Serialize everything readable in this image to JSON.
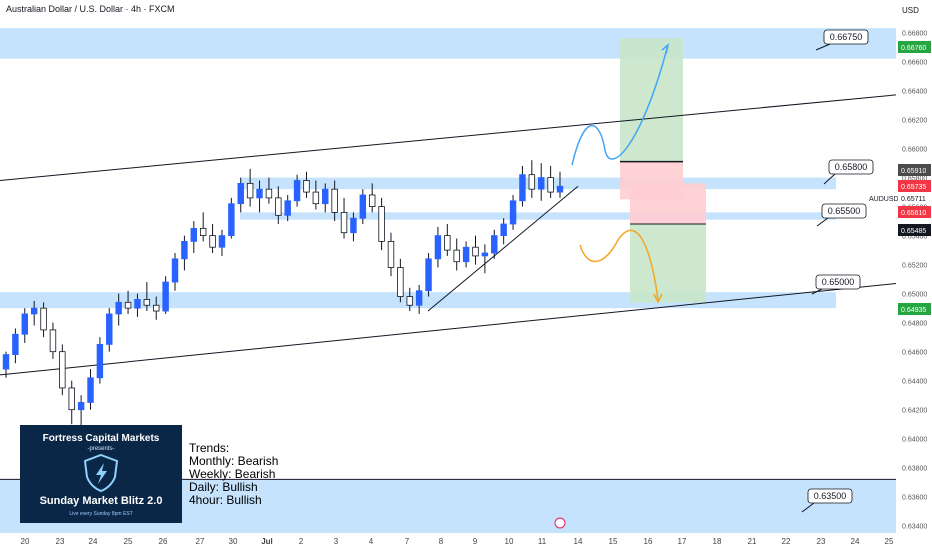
{
  "header": {
    "title": "Australian Dollar / U.S. Dollar · 4h · FXCM",
    "currency": "USD",
    "symbol": "AUDUSD"
  },
  "colors": {
    "up": "#2962ff",
    "down": "#ffffff",
    "zone": "#bbdefb",
    "target": "#c8e6c9",
    "stop": "#ffcdd2",
    "path_up": "#42a5f5",
    "path_down": "#f5a623"
  },
  "banner": {
    "company": "Fortress Capital Markets",
    "presents": "-presents-",
    "show": "Sunday Market Blitz 2.0",
    "tagline": "Live every Sunday 8pm EST",
    "icon": "shield-icon"
  },
  "trends": {
    "title": "Trends:",
    "monthly": "Monthly: Bearish",
    "weekly": "Weekly: Bearish",
    "daily": "Daily: Bullish",
    "h4": "4hour: Bullish"
  },
  "chart_data": {
    "type": "candlestick",
    "timeframe": "4h",
    "ylim": [
      0.6335,
      0.669
    ],
    "y_ticks": [
      "0.66800",
      "0.66600",
      "0.66400",
      "0.66200",
      "0.66000",
      "0.65800",
      "0.65600",
      "0.65400",
      "0.65200",
      "0.65000",
      "0.64800",
      "0.64600",
      "0.64400",
      "0.64200",
      "0.64000",
      "0.63800",
      "0.63600",
      "0.63400"
    ],
    "x_ticks": [
      "20",
      "23",
      "24",
      "25",
      "26",
      "27",
      "30",
      "Jul",
      "2",
      "3",
      "4",
      "7",
      "8",
      "9",
      "10",
      "11",
      "14",
      "15",
      "16",
      "17",
      "18",
      "21",
      "22",
      "23",
      "24",
      "25"
    ],
    "zones": [
      {
        "label": "0.66750",
        "low": 0.6662,
        "high": 0.6683
      },
      {
        "label": "0.65800",
        "low": 0.6572,
        "high": 0.658
      },
      {
        "label": "0.65500",
        "low": 0.6551,
        "high": 0.6556
      },
      {
        "label": "0.65000",
        "low": 0.649,
        "high": 0.6501
      },
      {
        "label": "0.63500",
        "low": 0.6335,
        "high": 0.6372
      }
    ],
    "price_tags": [
      {
        "value": "0.66760",
        "color": "#26a641"
      },
      {
        "value": "0.65910",
        "color": "#4b4b4b"
      },
      {
        "value": "0.65735",
        "color": "#f23645"
      },
      {
        "value": "0.65711",
        "color": "#ffffff"
      },
      {
        "value": "0.65610",
        "color": "#f23645"
      },
      {
        "value": "0.65485",
        "color": "#131722"
      },
      {
        "value": "0.64935",
        "color": "#26a641"
      }
    ],
    "channel": {
      "upper": [
        [
          0,
          0.6578
        ],
        [
          1,
          0.6637
        ]
      ],
      "lower": [
        [
          0,
          0.6444
        ],
        [
          1,
          0.6507
        ]
      ]
    },
    "long_setup": {
      "entry": 0.6591,
      "target": 0.6676,
      "stop": 0.6565
    },
    "short_setup": {
      "entry": 0.6548,
      "target": 0.6494,
      "stop": 0.6576
    },
    "candles": [
      [
        0.6448,
        0.646,
        0.6442,
        0.6458
      ],
      [
        0.6458,
        0.6476,
        0.6452,
        0.6472
      ],
      [
        0.6472,
        0.649,
        0.6466,
        0.6486
      ],
      [
        0.6486,
        0.6495,
        0.6478,
        0.649
      ],
      [
        0.649,
        0.6494,
        0.647,
        0.6475
      ],
      [
        0.6475,
        0.648,
        0.6455,
        0.646
      ],
      [
        0.646,
        0.6465,
        0.643,
        0.6435
      ],
      [
        0.6435,
        0.644,
        0.641,
        0.642
      ],
      [
        0.642,
        0.643,
        0.64,
        0.6425
      ],
      [
        0.6425,
        0.6448,
        0.642,
        0.6442
      ],
      [
        0.6442,
        0.647,
        0.6438,
        0.6465
      ],
      [
        0.6465,
        0.649,
        0.646,
        0.6486
      ],
      [
        0.6486,
        0.65,
        0.6478,
        0.6494
      ],
      [
        0.6494,
        0.6502,
        0.6486,
        0.649
      ],
      [
        0.649,
        0.65,
        0.6484,
        0.6496
      ],
      [
        0.6496,
        0.6508,
        0.6488,
        0.6492
      ],
      [
        0.6492,
        0.6498,
        0.6482,
        0.6488
      ],
      [
        0.6488,
        0.6512,
        0.6486,
        0.6508
      ],
      [
        0.6508,
        0.6528,
        0.6502,
        0.6524
      ],
      [
        0.6524,
        0.654,
        0.6516,
        0.6536
      ],
      [
        0.6536,
        0.655,
        0.6528,
        0.6545
      ],
      [
        0.6545,
        0.6556,
        0.6536,
        0.654
      ],
      [
        0.654,
        0.6548,
        0.6528,
        0.6532
      ],
      [
        0.6532,
        0.6544,
        0.6526,
        0.654
      ],
      [
        0.654,
        0.6566,
        0.6538,
        0.6562
      ],
      [
        0.6562,
        0.658,
        0.6556,
        0.6576
      ],
      [
        0.6576,
        0.6586,
        0.656,
        0.6566
      ],
      [
        0.6566,
        0.6578,
        0.6556,
        0.6572
      ],
      [
        0.6572,
        0.658,
        0.6562,
        0.6566
      ],
      [
        0.6566,
        0.6574,
        0.6548,
        0.6554
      ],
      [
        0.6554,
        0.6568,
        0.655,
        0.6564
      ],
      [
        0.6564,
        0.6582,
        0.656,
        0.6578
      ],
      [
        0.6578,
        0.6584,
        0.6566,
        0.657
      ],
      [
        0.657,
        0.6578,
        0.6558,
        0.6562
      ],
      [
        0.6562,
        0.6576,
        0.6556,
        0.6572
      ],
      [
        0.6572,
        0.6578,
        0.655,
        0.6556
      ],
      [
        0.6556,
        0.6566,
        0.6538,
        0.6542
      ],
      [
        0.6542,
        0.6556,
        0.6536,
        0.6552
      ],
      [
        0.6552,
        0.6572,
        0.6548,
        0.6568
      ],
      [
        0.6568,
        0.6576,
        0.6556,
        0.656
      ],
      [
        0.656,
        0.6566,
        0.653,
        0.6536
      ],
      [
        0.6536,
        0.6542,
        0.6512,
        0.6518
      ],
      [
        0.6518,
        0.6524,
        0.6494,
        0.6498
      ],
      [
        0.6498,
        0.6504,
        0.6488,
        0.6492
      ],
      [
        0.6492,
        0.6506,
        0.6486,
        0.6502
      ],
      [
        0.6502,
        0.6528,
        0.6498,
        0.6524
      ],
      [
        0.6524,
        0.6546,
        0.6518,
        0.654
      ],
      [
        0.654,
        0.6548,
        0.6526,
        0.653
      ],
      [
        0.653,
        0.6538,
        0.6516,
        0.6522
      ],
      [
        0.6522,
        0.6536,
        0.6518,
        0.6532
      ],
      [
        0.6532,
        0.654,
        0.652,
        0.6526
      ],
      [
        0.6526,
        0.6534,
        0.6514,
        0.6528
      ],
      [
        0.6528,
        0.6544,
        0.6524,
        0.654
      ],
      [
        0.654,
        0.6552,
        0.6534,
        0.6548
      ],
      [
        0.6548,
        0.6568,
        0.6544,
        0.6564
      ],
      [
        0.6564,
        0.6588,
        0.656,
        0.6582
      ],
      [
        0.6582,
        0.6592,
        0.6566,
        0.6572
      ],
      [
        0.6572,
        0.659,
        0.6564,
        0.658
      ],
      [
        0.658,
        0.6588,
        0.6566,
        0.657
      ],
      [
        0.657,
        0.6584,
        0.6566,
        0.6574
      ]
    ]
  }
}
